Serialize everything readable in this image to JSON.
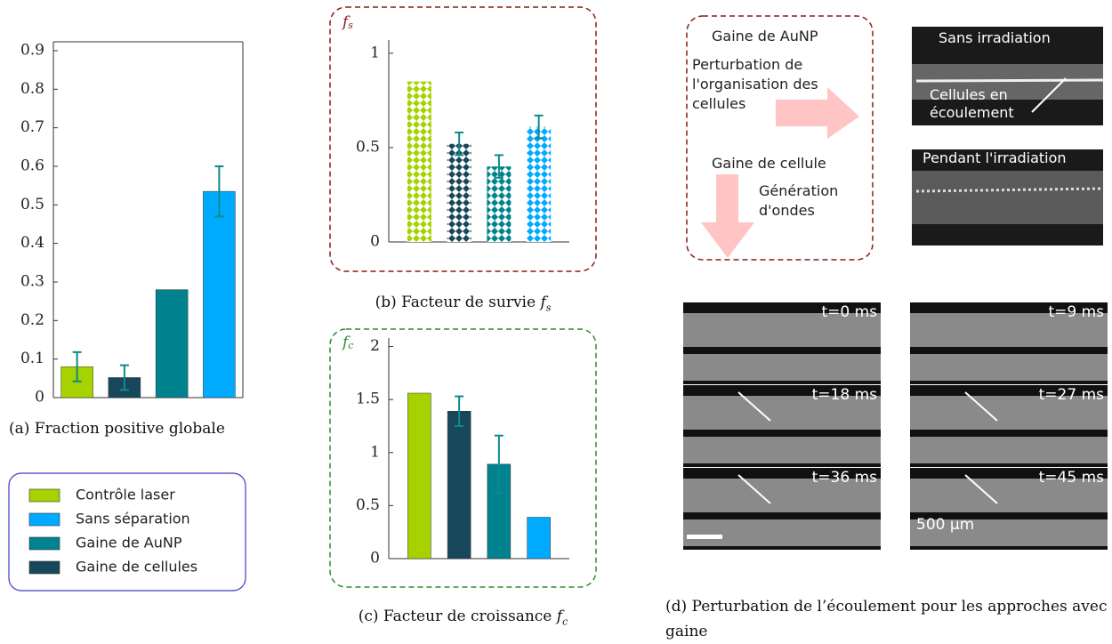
{
  "chart_data": [
    {
      "type": "bar",
      "caption": "(a) Fraction positive globale",
      "categories": [
        null,
        null,
        null,
        null
      ],
      "values": [
        0.08,
        0.052,
        0.28,
        0.535
      ],
      "errors": [
        0.038,
        0.032,
        null,
        0.065
      ],
      "colors": [
        "#a6d300",
        "#17475a",
        "#00838f",
        "#00aaff"
      ],
      "ylim": [
        0,
        0.923
      ],
      "yticks": [
        0,
        0.1,
        0.2,
        0.3,
        0.4,
        0.5,
        0.6,
        0.7,
        0.8,
        0.9
      ],
      "box": true
    },
    {
      "type": "bar",
      "caption": "(b) Facteur de survie",
      "symbol": "f",
      "symbol_sub": "s",
      "frame_color": "#8b1a1a",
      "categories": [
        null,
        null,
        null,
        null
      ],
      "values": [
        0.85,
        0.52,
        0.4,
        0.61
      ],
      "errors": [
        null,
        0.06,
        0.06,
        0.06
      ],
      "colors": [
        "#a6d300",
        "#17475a",
        "#00838f",
        "#00aaff"
      ],
      "ylim": [
        0,
        1.07
      ],
      "yticks": [
        0,
        0.5,
        1
      ],
      "hatched": true
    },
    {
      "type": "bar",
      "caption": "(c) Facteur de croissance",
      "symbol": "f",
      "symbol_sub": "c",
      "frame_color": "#2e8b2e",
      "categories": [
        null,
        null,
        null,
        null
      ],
      "values": [
        1.56,
        1.39,
        0.89,
        0.39
      ],
      "errors": [
        null,
        0.14,
        0.27,
        null
      ],
      "colors": [
        "#a6d300",
        "#17475a",
        "#00838f",
        "#00aaff"
      ],
      "ylim": [
        0,
        2.08
      ],
      "yticks": [
        0,
        0.5,
        1,
        1.5,
        2
      ]
    }
  ],
  "legend": {
    "entries": [
      {
        "name": "Contrôle laser",
        "color": "#a6d300"
      },
      {
        "name": "Sans séparation",
        "color": "#00aaff"
      },
      {
        "name": "Gaine de AuNP",
        "color": "#00838f"
      },
      {
        "name": "Gaine de cellules",
        "color": "#17475a"
      }
    ]
  },
  "panel_d": {
    "diagram": {
      "auNP": "Gaine de AuNP",
      "perturbation": "Perturbation de l'organisation des cellules",
      "cell": "Gaine de cellule",
      "waves": "Génération d'ondes"
    },
    "images": {
      "without": "Sans irradiation",
      "cells": "Cellules en écoulement",
      "during": "Pendant l'irradiation"
    },
    "times": [
      "t=0 ms",
      "t=9 ms",
      "t=18 ms",
      "t=27 ms",
      "t=36 ms",
      "t=45 ms"
    ],
    "scale": "500 µm",
    "caption": "(d) Perturbation de l’écoulement pour les approches avec gaine"
  }
}
